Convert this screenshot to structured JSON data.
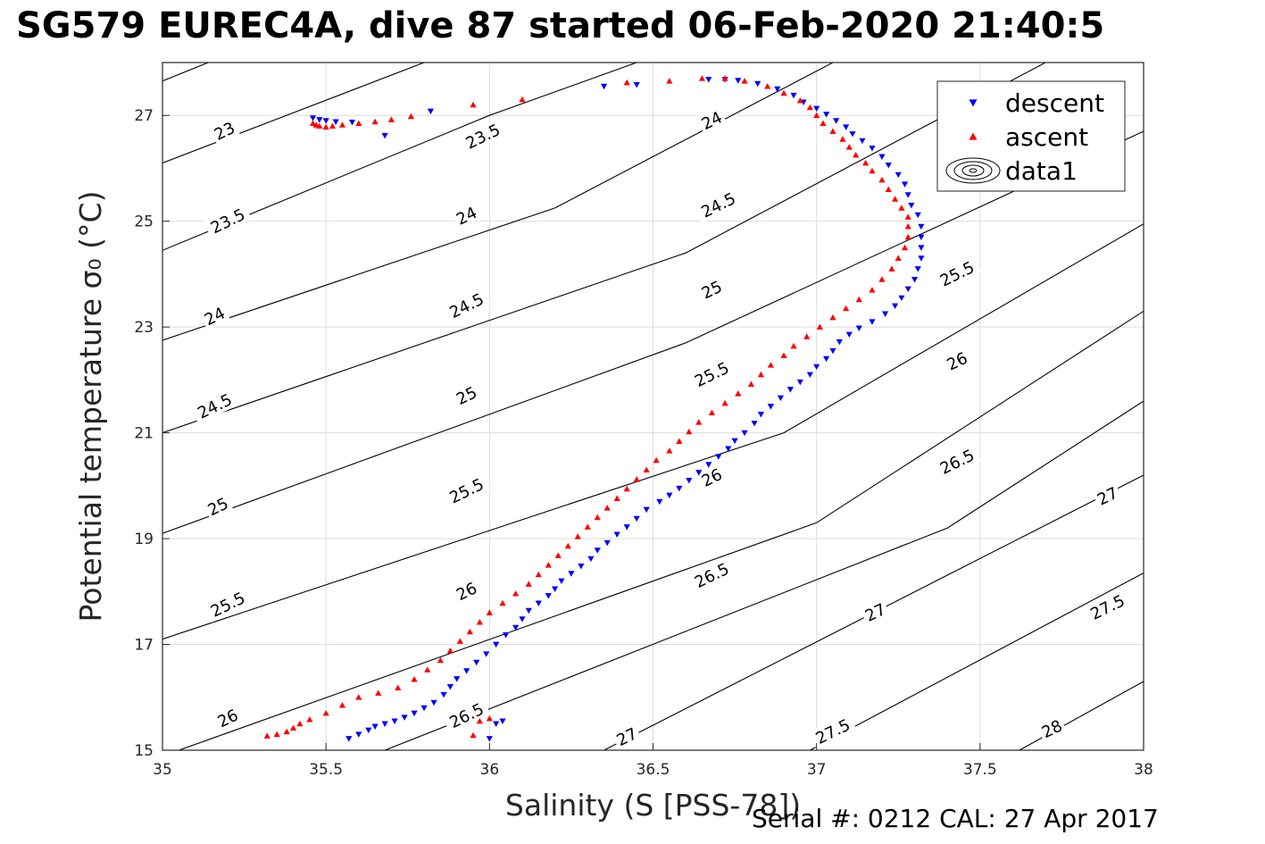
{
  "title": "SG579 EUREC4A, dive 87 started 06-Feb-2020 21:40:5",
  "footer": "Serial #: 0212  CAL: 27 Apr 2017",
  "chart_data": {
    "type": "scatter",
    "xlabel": "Salinity (S [PSS-78])",
    "ylabel": "Potential temperature σ₀ (°C)",
    "xlim": [
      35,
      38
    ],
    "ylim": [
      15,
      28
    ],
    "xticks": [
      "35",
      "35.5",
      "36",
      "36.5",
      "37",
      "37.5",
      "38"
    ],
    "yticks": [
      "15",
      "17",
      "19",
      "21",
      "23",
      "25",
      "27"
    ],
    "grid": true,
    "legend_position": "top-right",
    "legend": [
      "descent",
      "ascent",
      "data1"
    ],
    "colors": {
      "descent": "#0000ff",
      "ascent": "#ff0000",
      "contour": "#000000",
      "grid": "#dcdcdc"
    },
    "contour_levels": [
      23,
      23.5,
      24,
      24.5,
      25,
      25.5,
      26,
      26.5,
      27,
      27.5,
      28
    ],
    "contour_lines": [
      {
        "label": "23",
        "points": [
          [
            35,
            27.65
          ],
          [
            35.14,
            28.0
          ]
        ]
      },
      {
        "label": "23",
        "points": [
          [
            35,
            26.1
          ],
          [
            35.8,
            28.0
          ]
        ]
      },
      {
        "label": "23.5",
        "points": [
          [
            35,
            24.45
          ],
          [
            36.0,
            27.0
          ],
          [
            36.45,
            28.0
          ]
        ]
      },
      {
        "label": "24",
        "points": [
          [
            35,
            22.75
          ],
          [
            36.2,
            25.25
          ],
          [
            37.05,
            28.0
          ]
        ]
      },
      {
        "label": "24.5",
        "points": [
          [
            35,
            21.0
          ],
          [
            36.6,
            24.4
          ],
          [
            37.7,
            28.0
          ]
        ]
      },
      {
        "label": "25",
        "points": [
          [
            35,
            19.1
          ],
          [
            36.6,
            22.7
          ],
          [
            38.0,
            26.7
          ]
        ]
      },
      {
        "label": "25.5",
        "points": [
          [
            35,
            17.1
          ],
          [
            36.9,
            21.0
          ],
          [
            38.0,
            24.95
          ]
        ]
      },
      {
        "label": "26",
        "points": [
          [
            35.05,
            15.0
          ],
          [
            37.0,
            19.3
          ],
          [
            38.0,
            23.3
          ]
        ]
      },
      {
        "label": "26.5",
        "points": [
          [
            35.68,
            15.0
          ],
          [
            37.4,
            19.2
          ],
          [
            38.0,
            21.6
          ]
        ]
      },
      {
        "label": "27",
        "points": [
          [
            36.35,
            15.0
          ],
          [
            38.0,
            20.2
          ]
        ]
      },
      {
        "label": "27.5",
        "points": [
          [
            36.98,
            15.0
          ],
          [
            38.0,
            18.35
          ]
        ]
      },
      {
        "label": "28",
        "points": [
          [
            37.62,
            15.0
          ],
          [
            38.0,
            16.3
          ]
        ]
      }
    ],
    "contour_labels": [
      {
        "text": "23",
        "x": 35.19,
        "y": 26.7
      },
      {
        "text": "23.5",
        "x": 35.98,
        "y": 26.6
      },
      {
        "text": "24",
        "x": 36.68,
        "y": 26.9
      },
      {
        "text": "23.5",
        "x": 35.2,
        "y": 25.0
      },
      {
        "text": "24",
        "x": 35.93,
        "y": 25.1
      },
      {
        "text": "24.5",
        "x": 36.7,
        "y": 25.3
      },
      {
        "text": "24",
        "x": 35.16,
        "y": 23.2
      },
      {
        "text": "24.5",
        "x": 35.93,
        "y": 23.4
      },
      {
        "text": "25",
        "x": 36.68,
        "y": 23.7
      },
      {
        "text": "25.5",
        "x": 37.43,
        "y": 24.0
      },
      {
        "text": "24.5",
        "x": 35.16,
        "y": 21.5
      },
      {
        "text": "25",
        "x": 35.93,
        "y": 21.7
      },
      {
        "text": "25.5",
        "x": 36.68,
        "y": 22.1
      },
      {
        "text": "26",
        "x": 37.43,
        "y": 22.35
      },
      {
        "text": "25",
        "x": 35.17,
        "y": 19.6
      },
      {
        "text": "25.5",
        "x": 35.93,
        "y": 19.9
      },
      {
        "text": "26",
        "x": 36.68,
        "y": 20.15
      },
      {
        "text": "26.5",
        "x": 37.43,
        "y": 20.45
      },
      {
        "text": "27",
        "x": 37.89,
        "y": 19.8
      },
      {
        "text": "25.5",
        "x": 35.2,
        "y": 17.75
      },
      {
        "text": "26",
        "x": 35.93,
        "y": 18.0
      },
      {
        "text": "26.5",
        "x": 36.68,
        "y": 18.3
      },
      {
        "text": "27",
        "x": 37.18,
        "y": 17.6
      },
      {
        "text": "27.5",
        "x": 37.89,
        "y": 17.7
      },
      {
        "text": "26",
        "x": 35.2,
        "y": 15.6
      },
      {
        "text": "26.5",
        "x": 35.93,
        "y": 15.65
      },
      {
        "text": "27",
        "x": 36.42,
        "y": 15.25
      },
      {
        "text": "27.5",
        "x": 37.05,
        "y": 15.35
      },
      {
        "text": "28",
        "x": 37.72,
        "y": 15.4
      }
    ],
    "series": [
      {
        "name": "descent",
        "marker": "down-triangle",
        "points": [
          [
            35.46,
            26.95
          ],
          [
            35.48,
            26.92
          ],
          [
            35.5,
            26.9
          ],
          [
            35.53,
            26.88
          ],
          [
            35.58,
            26.87
          ],
          [
            35.68,
            26.62
          ],
          [
            35.82,
            27.08
          ],
          [
            36.35,
            27.55
          ],
          [
            36.45,
            27.58
          ],
          [
            36.67,
            27.68
          ],
          [
            36.72,
            27.68
          ],
          [
            36.76,
            27.66
          ],
          [
            36.82,
            27.6
          ],
          [
            36.88,
            27.5
          ],
          [
            36.93,
            27.38
          ],
          [
            36.96,
            27.25
          ],
          [
            37.0,
            27.13
          ],
          [
            37.03,
            27.02
          ],
          [
            37.06,
            26.9
          ],
          [
            37.09,
            26.78
          ],
          [
            37.11,
            26.65
          ],
          [
            37.14,
            26.52
          ],
          [
            37.17,
            26.38
          ],
          [
            37.2,
            26.22
          ],
          [
            37.22,
            26.06
          ],
          [
            37.25,
            25.88
          ],
          [
            37.27,
            25.7
          ],
          [
            37.28,
            25.5
          ],
          [
            37.29,
            25.3
          ],
          [
            37.31,
            25.12
          ],
          [
            37.32,
            24.9
          ],
          [
            37.32,
            24.7
          ],
          [
            37.32,
            24.5
          ],
          [
            37.32,
            24.3
          ],
          [
            37.31,
            24.1
          ],
          [
            37.3,
            23.9
          ],
          [
            37.28,
            23.72
          ],
          [
            37.26,
            23.55
          ],
          [
            37.24,
            23.4
          ],
          [
            37.21,
            23.25
          ],
          [
            37.17,
            23.1
          ],
          [
            37.13,
            22.98
          ],
          [
            37.1,
            22.86
          ],
          [
            37.07,
            22.72
          ],
          [
            37.05,
            22.55
          ],
          [
            37.03,
            22.4
          ],
          [
            37.0,
            22.25
          ],
          [
            36.98,
            22.1
          ],
          [
            36.95,
            21.96
          ],
          [
            36.92,
            21.82
          ],
          [
            36.89,
            21.66
          ],
          [
            36.86,
            21.5
          ],
          [
            36.83,
            21.35
          ],
          [
            36.81,
            21.18
          ],
          [
            36.78,
            21.0
          ],
          [
            36.75,
            20.85
          ],
          [
            36.73,
            20.7
          ],
          [
            36.7,
            20.55
          ],
          [
            36.67,
            20.4
          ],
          [
            36.64,
            20.25
          ],
          [
            36.61,
            20.1
          ],
          [
            36.58,
            19.95
          ],
          [
            36.55,
            19.82
          ],
          [
            36.52,
            19.7
          ],
          [
            36.48,
            19.55
          ],
          [
            36.45,
            19.38
          ],
          [
            36.42,
            19.22
          ],
          [
            36.39,
            19.08
          ],
          [
            36.36,
            18.92
          ],
          [
            36.33,
            18.78
          ],
          [
            36.31,
            18.62
          ],
          [
            36.28,
            18.48
          ],
          [
            36.25,
            18.34
          ],
          [
            36.22,
            18.2
          ],
          [
            36.2,
            18.05
          ],
          [
            36.18,
            17.92
          ],
          [
            36.15,
            17.78
          ],
          [
            36.12,
            17.64
          ],
          [
            36.1,
            17.48
          ],
          [
            36.08,
            17.32
          ],
          [
            36.05,
            17.18
          ],
          [
            36.02,
            17.0
          ],
          [
            35.99,
            16.82
          ],
          [
            35.96,
            16.66
          ],
          [
            35.93,
            16.5
          ],
          [
            35.9,
            16.35
          ],
          [
            35.88,
            16.2
          ],
          [
            35.86,
            16.05
          ],
          [
            35.83,
            15.9
          ],
          [
            35.8,
            15.8
          ],
          [
            35.77,
            15.7
          ],
          [
            35.74,
            15.62
          ],
          [
            35.71,
            15.55
          ],
          [
            35.68,
            15.5
          ],
          [
            35.65,
            15.45
          ],
          [
            35.63,
            15.38
          ],
          [
            35.6,
            15.3
          ],
          [
            35.57,
            15.22
          ],
          [
            36.0,
            15.22
          ],
          [
            36.02,
            15.5
          ],
          [
            36.04,
            15.55
          ]
        ]
      },
      {
        "name": "ascent",
        "marker": "up-triangle",
        "points": [
          [
            35.46,
            26.85
          ],
          [
            35.47,
            26.82
          ],
          [
            35.48,
            26.8
          ],
          [
            35.5,
            26.78
          ],
          [
            35.52,
            26.8
          ],
          [
            35.55,
            26.82
          ],
          [
            35.6,
            26.85
          ],
          [
            35.65,
            26.88
          ],
          [
            35.7,
            26.92
          ],
          [
            35.76,
            26.98
          ],
          [
            35.95,
            27.2
          ],
          [
            36.1,
            27.3
          ],
          [
            36.42,
            27.62
          ],
          [
            36.55,
            27.65
          ],
          [
            36.65,
            27.7
          ],
          [
            36.72,
            27.7
          ],
          [
            36.78,
            27.65
          ],
          [
            36.85,
            27.55
          ],
          [
            36.9,
            27.42
          ],
          [
            36.95,
            27.28
          ],
          [
            36.98,
            27.15
          ],
          [
            37.0,
            27.0
          ],
          [
            37.02,
            26.85
          ],
          [
            37.05,
            26.7
          ],
          [
            37.08,
            26.55
          ],
          [
            37.1,
            26.4
          ],
          [
            37.12,
            26.25
          ],
          [
            37.15,
            26.1
          ],
          [
            37.17,
            25.95
          ],
          [
            37.2,
            25.78
          ],
          [
            37.22,
            25.6
          ],
          [
            37.24,
            25.42
          ],
          [
            37.26,
            25.25
          ],
          [
            37.28,
            25.08
          ],
          [
            37.28,
            24.9
          ],
          [
            37.28,
            24.7
          ],
          [
            37.27,
            24.5
          ],
          [
            37.25,
            24.3
          ],
          [
            37.23,
            24.1
          ],
          [
            37.2,
            23.9
          ],
          [
            37.17,
            23.7
          ],
          [
            37.13,
            23.52
          ],
          [
            37.09,
            23.35
          ],
          [
            37.05,
            23.18
          ],
          [
            37.01,
            23.0
          ],
          [
            36.97,
            22.82
          ],
          [
            36.93,
            22.64
          ],
          [
            36.9,
            22.46
          ],
          [
            36.86,
            22.28
          ],
          [
            36.83,
            22.1
          ],
          [
            36.8,
            21.92
          ],
          [
            36.76,
            21.74
          ],
          [
            36.72,
            21.56
          ],
          [
            36.68,
            21.38
          ],
          [
            36.64,
            21.2
          ],
          [
            36.61,
            21.02
          ],
          [
            36.58,
            20.84
          ],
          [
            36.55,
            20.66
          ],
          [
            36.51,
            20.48
          ],
          [
            36.48,
            20.3
          ],
          [
            36.45,
            20.12
          ],
          [
            36.42,
            19.94
          ],
          [
            36.39,
            19.76
          ],
          [
            36.36,
            19.58
          ],
          [
            36.33,
            19.4
          ],
          [
            36.3,
            19.22
          ],
          [
            36.27,
            19.04
          ],
          [
            36.24,
            18.86
          ],
          [
            36.21,
            18.68
          ],
          [
            36.18,
            18.5
          ],
          [
            36.15,
            18.32
          ],
          [
            36.12,
            18.14
          ],
          [
            36.08,
            17.96
          ],
          [
            36.04,
            17.78
          ],
          [
            36.0,
            17.6
          ],
          [
            35.97,
            17.42
          ],
          [
            35.94,
            17.24
          ],
          [
            35.91,
            17.06
          ],
          [
            35.88,
            16.88
          ],
          [
            35.85,
            16.7
          ],
          [
            35.81,
            16.52
          ],
          [
            35.77,
            16.34
          ],
          [
            35.72,
            16.18
          ],
          [
            35.66,
            16.08
          ],
          [
            35.6,
            16.0
          ],
          [
            35.55,
            15.85
          ],
          [
            35.5,
            15.7
          ],
          [
            35.45,
            15.58
          ],
          [
            35.42,
            15.5
          ],
          [
            35.4,
            15.42
          ],
          [
            35.38,
            15.35
          ],
          [
            35.35,
            15.3
          ],
          [
            35.32,
            15.27
          ],
          [
            35.95,
            15.28
          ],
          [
            35.97,
            15.55
          ],
          [
            36.0,
            15.6
          ]
        ]
      }
    ]
  }
}
